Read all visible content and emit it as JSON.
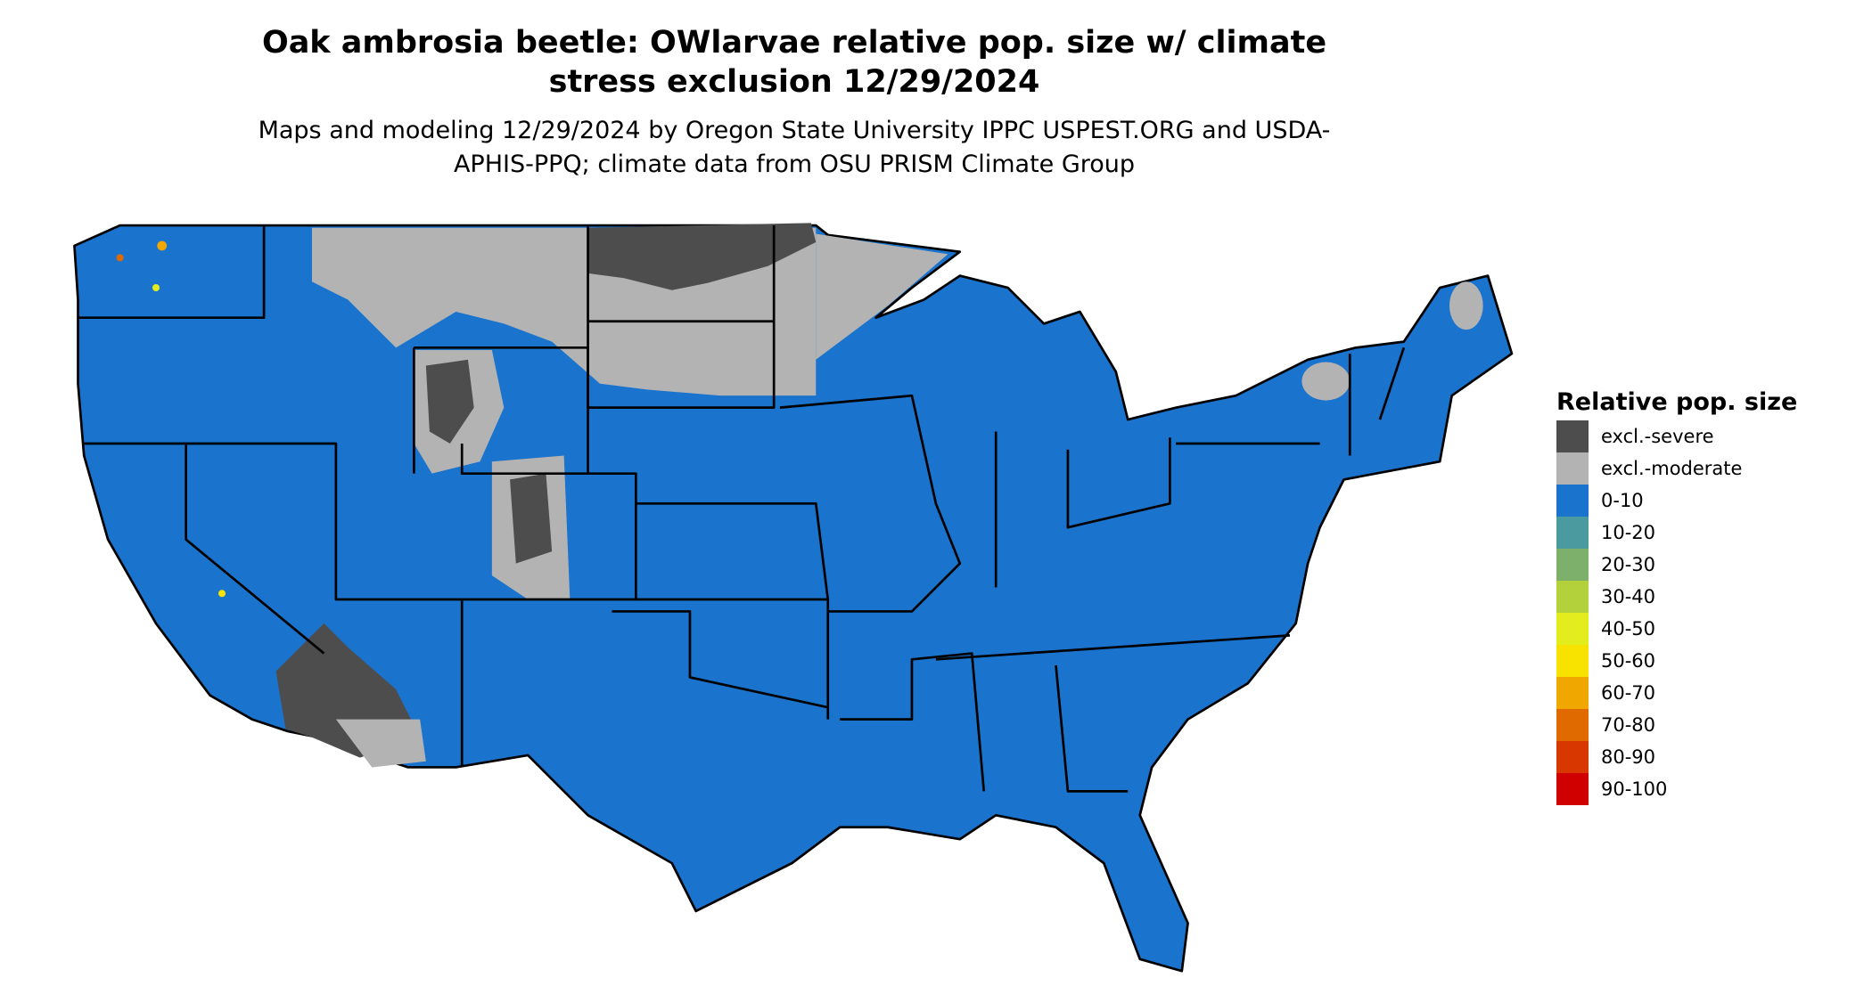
{
  "header": {
    "title": "Oak ambrosia beetle: OWlarvae relative pop. size w/ climate stress exclusion 12/29/2024",
    "subtitle": "Maps and modeling 12/29/2024 by Oregon State University IPPC USPEST.ORG and USDA-APHIS-PPQ; climate data from OSU PRISM Climate Group"
  },
  "legend": {
    "title": "Relative pop. size",
    "items": [
      {
        "label": "excl.-severe",
        "color": "#4d4d4d"
      },
      {
        "label": "excl.-moderate",
        "color": "#b3b3b3"
      },
      {
        "label": "0-10",
        "color": "#1a73cc"
      },
      {
        "label": "10-20",
        "color": "#4a9aa0"
      },
      {
        "label": "20-30",
        "color": "#7db06a"
      },
      {
        "label": "30-40",
        "color": "#b3d13a"
      },
      {
        "label": "40-50",
        "color": "#e3ec1c"
      },
      {
        "label": "50-60",
        "color": "#f7e200"
      },
      {
        "label": "60-70",
        "color": "#f0a800"
      },
      {
        "label": "70-80",
        "color": "#e06a00"
      },
      {
        "label": "80-90",
        "color": "#d83800"
      },
      {
        "label": "90-100",
        "color": "#d00000"
      }
    ]
  }
}
